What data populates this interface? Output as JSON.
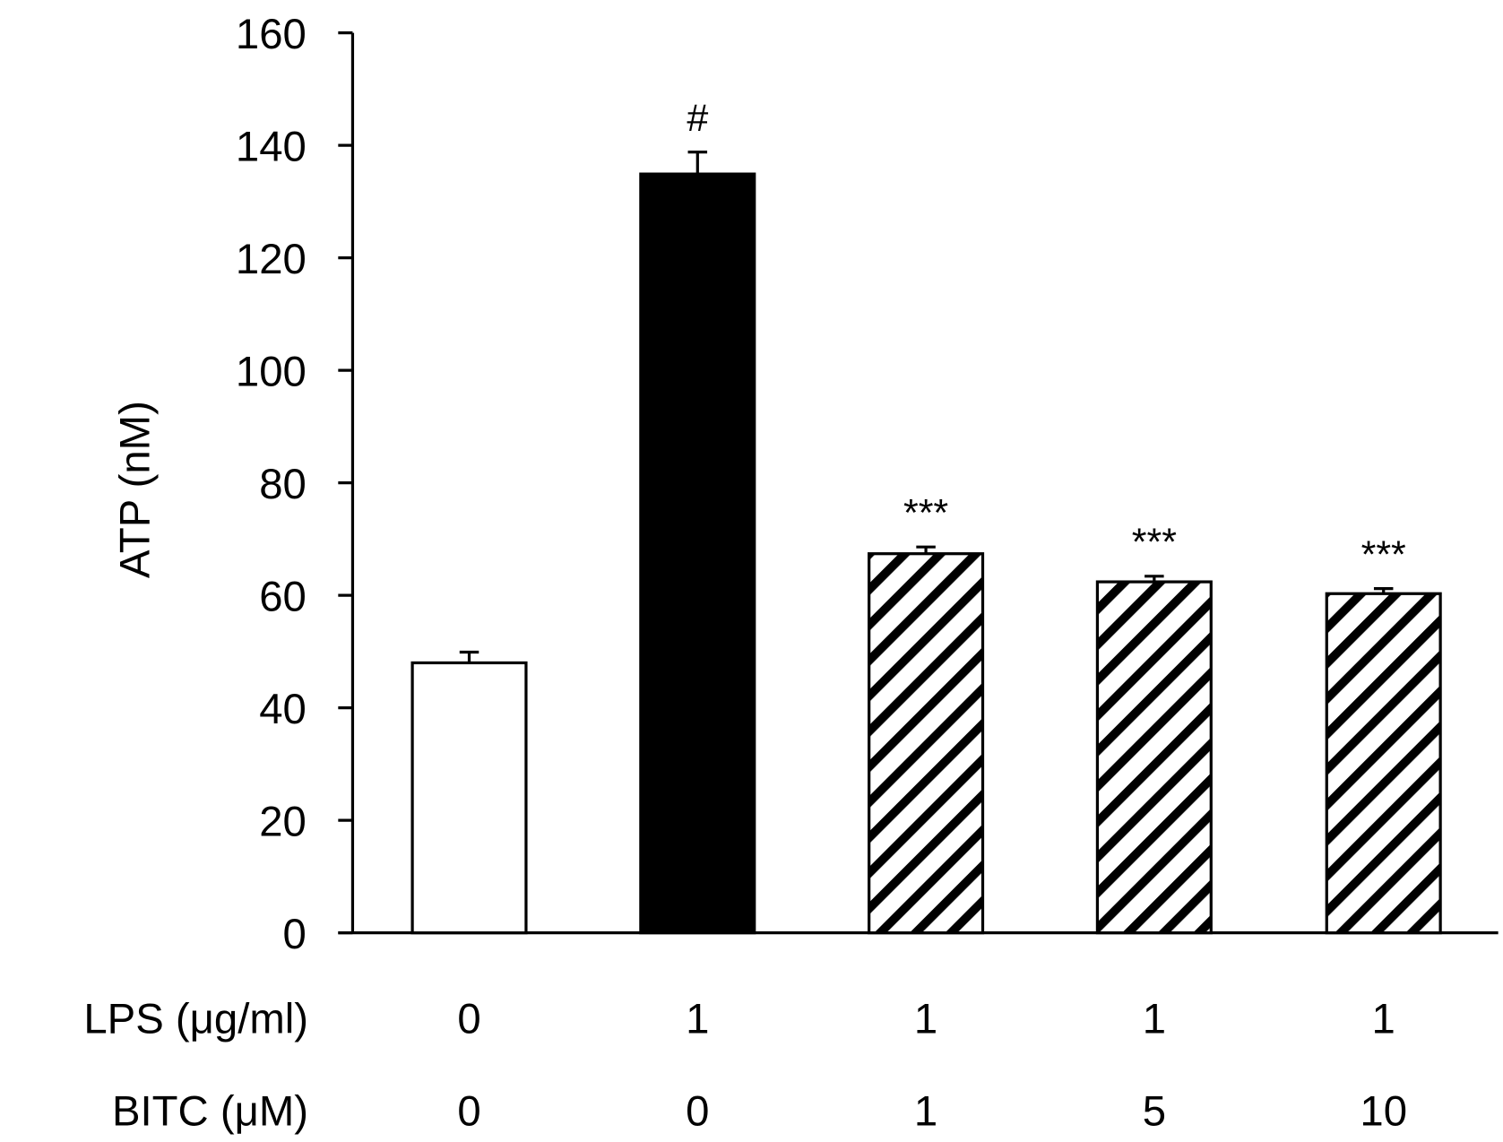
{
  "chart_data": {
    "type": "bar",
    "title": "",
    "ylabel": "ATP (nM)",
    "xlabel": "",
    "ylim": [
      0,
      160
    ],
    "yticks": [
      0,
      20,
      40,
      60,
      80,
      100,
      120,
      140,
      160
    ],
    "grid": false,
    "categories": [
      "LPS 0 / BITC 0",
      "LPS 1 / BITC 0",
      "LPS 1 / BITC 1",
      "LPS 1 / BITC 5",
      "LPS 1 / BITC 10"
    ],
    "values": [
      48.0,
      134.9,
      67.4,
      62.4,
      60.3
    ],
    "errors": [
      1.9,
      3.9,
      1.2,
      1.0,
      0.9
    ],
    "fills": [
      "white",
      "black",
      "hatch",
      "hatch",
      "hatch"
    ],
    "annotations": [
      "",
      "#",
      "***",
      "***",
      "***"
    ],
    "row_labels": [
      {
        "label": "LPS (μg/ml)",
        "values": [
          "0",
          "1",
          "1",
          "1",
          "1"
        ]
      },
      {
        "label": "BITC (μM)",
        "values": [
          "0",
          "0",
          "1",
          "5",
          "10"
        ]
      }
    ]
  }
}
